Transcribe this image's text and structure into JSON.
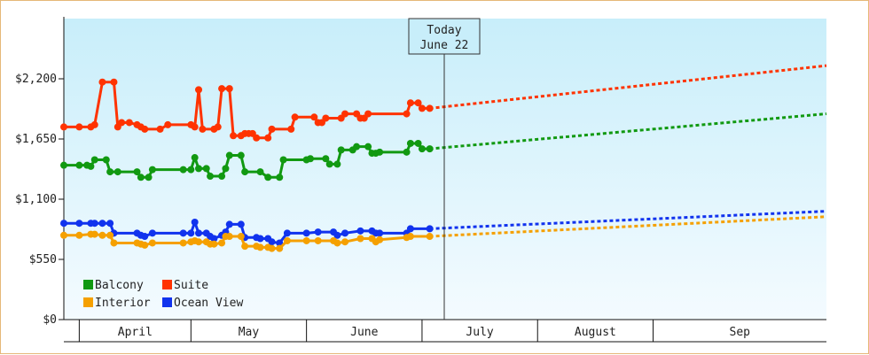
{
  "chart_data": {
    "type": "line",
    "x_unit": "date",
    "ylim": [
      0,
      2750
    ],
    "yticks": [
      {
        "value": 0,
        "label": "$0"
      },
      {
        "value": 550,
        "label": "$550"
      },
      {
        "value": 1100,
        "label": "$1,100"
      },
      {
        "value": 1650,
        "label": "$1,650"
      },
      {
        "value": 2200,
        "label": "$2,200"
      }
    ],
    "months": [
      "April",
      "May",
      "June",
      "July",
      "August",
      "Sep"
    ],
    "today": {
      "line1": "Today",
      "line2": "June 22",
      "date": "2015-06-22"
    },
    "legend_placement": "bottom-left",
    "series": [
      {
        "name": "Suite",
        "color": "#ff3300",
        "history": [
          [
            "2015-03-31",
            1760
          ],
          [
            "2015-04-04",
            1760
          ],
          [
            "2015-04-07",
            1760
          ],
          [
            "2015-04-08",
            1780
          ],
          [
            "2015-04-10",
            2170
          ],
          [
            "2015-04-13",
            2170
          ],
          [
            "2015-04-14",
            1760
          ],
          [
            "2015-04-15",
            1800
          ],
          [
            "2015-04-17",
            1800
          ],
          [
            "2015-04-19",
            1780
          ],
          [
            "2015-04-20",
            1760
          ],
          [
            "2015-04-21",
            1740
          ],
          [
            "2015-04-25",
            1740
          ],
          [
            "2015-04-27",
            1780
          ],
          [
            "2015-05-03",
            1780
          ],
          [
            "2015-05-04",
            1760
          ],
          [
            "2015-05-05",
            2100
          ],
          [
            "2015-05-06",
            1740
          ],
          [
            "2015-05-09",
            1740
          ],
          [
            "2015-05-10",
            1760
          ],
          [
            "2015-05-11",
            2110
          ],
          [
            "2015-05-13",
            2110
          ],
          [
            "2015-05-14",
            1680
          ],
          [
            "2015-05-16",
            1680
          ],
          [
            "2015-05-17",
            1700
          ],
          [
            "2015-05-18",
            1700
          ],
          [
            "2015-05-19",
            1700
          ],
          [
            "2015-05-20",
            1660
          ],
          [
            "2015-05-23",
            1660
          ],
          [
            "2015-05-24",
            1740
          ],
          [
            "2015-05-29",
            1740
          ],
          [
            "2015-05-30",
            1850
          ],
          [
            "2015-06-04",
            1850
          ],
          [
            "2015-06-05",
            1800
          ],
          [
            "2015-06-06",
            1800
          ],
          [
            "2015-06-07",
            1840
          ],
          [
            "2015-06-11",
            1840
          ],
          [
            "2015-06-12",
            1880
          ],
          [
            "2015-06-15",
            1880
          ],
          [
            "2015-06-16",
            1840
          ],
          [
            "2015-06-17",
            1840
          ],
          [
            "2015-06-18",
            1880
          ],
          [
            "2015-06-28",
            1880
          ],
          [
            "2015-06-29",
            1980
          ],
          [
            "2015-07-01",
            1980
          ],
          [
            "2015-07-02",
            1930
          ],
          [
            "2015-07-04",
            1930
          ]
        ],
        "forecast": [
          [
            "2015-07-04",
            1930
          ],
          [
            "2015-10-15",
            2320
          ]
        ]
      },
      {
        "name": "Balcony",
        "color": "#119911",
        "history": [
          [
            "2015-03-31",
            1410
          ],
          [
            "2015-04-04",
            1410
          ],
          [
            "2015-04-06",
            1410
          ],
          [
            "2015-04-07",
            1400
          ],
          [
            "2015-04-08",
            1460
          ],
          [
            "2015-04-11",
            1460
          ],
          [
            "2015-04-12",
            1350
          ],
          [
            "2015-04-14",
            1350
          ],
          [
            "2015-04-19",
            1350
          ],
          [
            "2015-04-20",
            1300
          ],
          [
            "2015-04-22",
            1300
          ],
          [
            "2015-04-23",
            1370
          ],
          [
            "2015-05-01",
            1370
          ],
          [
            "2015-05-03",
            1370
          ],
          [
            "2015-05-04",
            1480
          ],
          [
            "2015-05-05",
            1380
          ],
          [
            "2015-05-07",
            1380
          ],
          [
            "2015-05-08",
            1310
          ],
          [
            "2015-05-11",
            1310
          ],
          [
            "2015-05-12",
            1380
          ],
          [
            "2015-05-13",
            1500
          ],
          [
            "2015-05-16",
            1500
          ],
          [
            "2015-05-17",
            1350
          ],
          [
            "2015-05-21",
            1350
          ],
          [
            "2015-05-23",
            1300
          ],
          [
            "2015-05-26",
            1300
          ],
          [
            "2015-05-27",
            1460
          ],
          [
            "2015-06-02",
            1460
          ],
          [
            "2015-06-03",
            1470
          ],
          [
            "2015-06-07",
            1470
          ],
          [
            "2015-06-08",
            1420
          ],
          [
            "2015-06-10",
            1420
          ],
          [
            "2015-06-11",
            1550
          ],
          [
            "2015-06-14",
            1550
          ],
          [
            "2015-06-15",
            1580
          ],
          [
            "2015-06-18",
            1580
          ],
          [
            "2015-06-19",
            1520
          ],
          [
            "2015-06-20",
            1520
          ],
          [
            "2015-06-21",
            1530
          ],
          [
            "2015-06-28",
            1530
          ],
          [
            "2015-06-29",
            1610
          ],
          [
            "2015-07-01",
            1610
          ],
          [
            "2015-07-02",
            1560
          ],
          [
            "2015-07-04",
            1560
          ]
        ],
        "forecast": [
          [
            "2015-07-04",
            1560
          ],
          [
            "2015-10-15",
            1880
          ]
        ]
      },
      {
        "name": "Ocean View",
        "color": "#1133ee",
        "history": [
          [
            "2015-03-31",
            880
          ],
          [
            "2015-04-04",
            880
          ],
          [
            "2015-04-07",
            880
          ],
          [
            "2015-04-08",
            880
          ],
          [
            "2015-04-10",
            880
          ],
          [
            "2015-04-12",
            880
          ],
          [
            "2015-04-13",
            790
          ],
          [
            "2015-04-19",
            790
          ],
          [
            "2015-04-20",
            770
          ],
          [
            "2015-04-21",
            760
          ],
          [
            "2015-04-23",
            790
          ],
          [
            "2015-05-01",
            790
          ],
          [
            "2015-05-03",
            790
          ],
          [
            "2015-05-04",
            890
          ],
          [
            "2015-05-05",
            790
          ],
          [
            "2015-05-07",
            790
          ],
          [
            "2015-05-08",
            760
          ],
          [
            "2015-05-09",
            740
          ],
          [
            "2015-05-11",
            770
          ],
          [
            "2015-05-12",
            800
          ],
          [
            "2015-05-13",
            870
          ],
          [
            "2015-05-16",
            870
          ],
          [
            "2015-05-17",
            750
          ],
          [
            "2015-05-20",
            750
          ],
          [
            "2015-05-21",
            740
          ],
          [
            "2015-05-23",
            740
          ],
          [
            "2015-05-24",
            710
          ],
          [
            "2015-05-26",
            700
          ],
          [
            "2015-05-28",
            790
          ],
          [
            "2015-06-02",
            790
          ],
          [
            "2015-06-05",
            800
          ],
          [
            "2015-06-09",
            800
          ],
          [
            "2015-06-10",
            770
          ],
          [
            "2015-06-12",
            790
          ],
          [
            "2015-06-16",
            810
          ],
          [
            "2015-06-19",
            810
          ],
          [
            "2015-06-20",
            790
          ],
          [
            "2015-06-21",
            790
          ],
          [
            "2015-06-28",
            790
          ],
          [
            "2015-06-29",
            830
          ],
          [
            "2015-07-04",
            830
          ]
        ],
        "forecast": [
          [
            "2015-07-04",
            830
          ],
          [
            "2015-10-15",
            990
          ]
        ]
      },
      {
        "name": "Interior",
        "color": "#f5a000",
        "history": [
          [
            "2015-03-31",
            770
          ],
          [
            "2015-04-04",
            770
          ],
          [
            "2015-04-07",
            780
          ],
          [
            "2015-04-08",
            780
          ],
          [
            "2015-04-10",
            770
          ],
          [
            "2015-04-12",
            770
          ],
          [
            "2015-04-13",
            700
          ],
          [
            "2015-04-19",
            700
          ],
          [
            "2015-04-20",
            690
          ],
          [
            "2015-04-21",
            680
          ],
          [
            "2015-04-23",
            700
          ],
          [
            "2015-05-01",
            700
          ],
          [
            "2015-05-03",
            710
          ],
          [
            "2015-05-04",
            720
          ],
          [
            "2015-05-05",
            710
          ],
          [
            "2015-05-07",
            710
          ],
          [
            "2015-05-08",
            690
          ],
          [
            "2015-05-09",
            690
          ],
          [
            "2015-05-11",
            700
          ],
          [
            "2015-05-12",
            760
          ],
          [
            "2015-05-13",
            760
          ],
          [
            "2015-05-16",
            760
          ],
          [
            "2015-05-17",
            670
          ],
          [
            "2015-05-20",
            670
          ],
          [
            "2015-05-21",
            660
          ],
          [
            "2015-05-23",
            660
          ],
          [
            "2015-05-24",
            650
          ],
          [
            "2015-05-26",
            650
          ],
          [
            "2015-05-28",
            720
          ],
          [
            "2015-06-02",
            720
          ],
          [
            "2015-06-05",
            720
          ],
          [
            "2015-06-09",
            720
          ],
          [
            "2015-06-10",
            700
          ],
          [
            "2015-06-12",
            710
          ],
          [
            "2015-06-16",
            740
          ],
          [
            "2015-06-19",
            740
          ],
          [
            "2015-06-20",
            710
          ],
          [
            "2015-06-21",
            730
          ],
          [
            "2015-06-28",
            750
          ],
          [
            "2015-06-29",
            760
          ],
          [
            "2015-07-04",
            760
          ]
        ],
        "forecast": [
          [
            "2015-07-04",
            760
          ],
          [
            "2015-10-15",
            940
          ]
        ]
      }
    ]
  }
}
